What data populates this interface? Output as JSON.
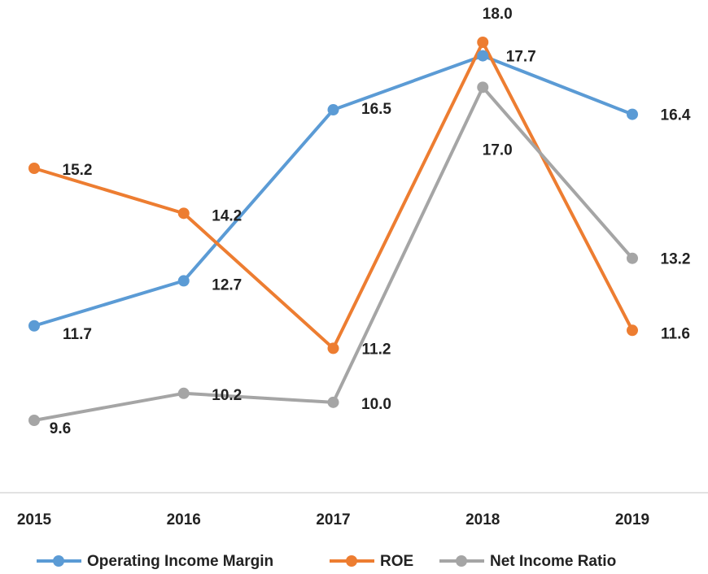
{
  "chart_data": {
    "type": "line",
    "categories": [
      "2015",
      "2016",
      "2017",
      "2018",
      "2019"
    ],
    "series": [
      {
        "name": "Operating Income Margin",
        "color": "#5b9bd5",
        "values": [
          11.7,
          12.7,
          16.5,
          17.7,
          16.4
        ],
        "value_labels": [
          "11.7",
          "12.7",
          "16.5",
          "17.7",
          "16.4"
        ]
      },
      {
        "name": "ROE",
        "color": "#ed7d31",
        "values": [
          15.2,
          14.2,
          11.2,
          18.0,
          11.6
        ],
        "value_labels": [
          "15.2",
          "14.2",
          "11.2",
          "18.0",
          "11.6"
        ]
      },
      {
        "name": "Net Income Ratio",
        "color": "#a5a5a5",
        "values": [
          9.6,
          10.2,
          10.0,
          17.0,
          13.2
        ],
        "value_labels": [
          "9.6",
          "10.2",
          "10.0",
          "17.0",
          "13.2"
        ]
      }
    ],
    "legend": "bottom"
  }
}
